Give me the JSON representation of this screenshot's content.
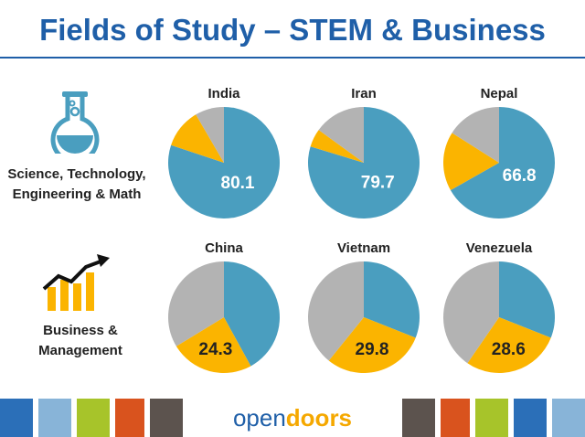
{
  "title": "Fields of Study – STEM & Business",
  "categories": {
    "stem_line1": "Science, Technology,",
    "stem_line2": "Engineering & Math",
    "business_line1": "Business &",
    "business_line2": "Management"
  },
  "brand": {
    "part1": "open",
    "part2": "doors"
  },
  "colors": {
    "stem": "#4a9ebf",
    "business": "#fbb400",
    "other": "#b3b3b3",
    "title": "#1f5fa8"
  },
  "icons": [
    "flask-icon",
    "growth-chart-icon"
  ],
  "chart_data": [
    {
      "type": "pie",
      "title": "India",
      "labeled_value": 80.1,
      "labeled_slice": "stem",
      "slices": [
        {
          "segment": "stem",
          "value": 80.1
        },
        {
          "segment": "business",
          "value": 11.5
        },
        {
          "segment": "other",
          "value": 8.4
        }
      ]
    },
    {
      "type": "pie",
      "title": "Iran",
      "labeled_value": 79.7,
      "labeled_slice": "stem",
      "slices": [
        {
          "segment": "stem",
          "value": 79.7
        },
        {
          "segment": "business",
          "value": 5.3
        },
        {
          "segment": "other",
          "value": 15.0
        }
      ]
    },
    {
      "type": "pie",
      "title": "Nepal",
      "labeled_value": 66.8,
      "labeled_slice": "stem",
      "slices": [
        {
          "segment": "stem",
          "value": 66.8
        },
        {
          "segment": "business",
          "value": 17.2
        },
        {
          "segment": "other",
          "value": 16.0
        }
      ]
    },
    {
      "type": "pie",
      "title": "China",
      "labeled_value": 24.3,
      "labeled_slice": "business",
      "slices": [
        {
          "segment": "stem",
          "value": 42.0
        },
        {
          "segment": "business",
          "value": 24.3
        },
        {
          "segment": "other",
          "value": 33.7
        }
      ]
    },
    {
      "type": "pie",
      "title": "Vietnam",
      "labeled_value": 29.8,
      "labeled_slice": "business",
      "slices": [
        {
          "segment": "stem",
          "value": 31.0
        },
        {
          "segment": "business",
          "value": 29.8
        },
        {
          "segment": "other",
          "value": 39.2
        }
      ]
    },
    {
      "type": "pie",
      "title": "Venezuela",
      "labeled_value": 28.6,
      "labeled_slice": "business",
      "slices": [
        {
          "segment": "stem",
          "value": 31.0
        },
        {
          "segment": "business",
          "value": 28.6
        },
        {
          "segment": "other",
          "value": 40.4
        }
      ]
    }
  ]
}
